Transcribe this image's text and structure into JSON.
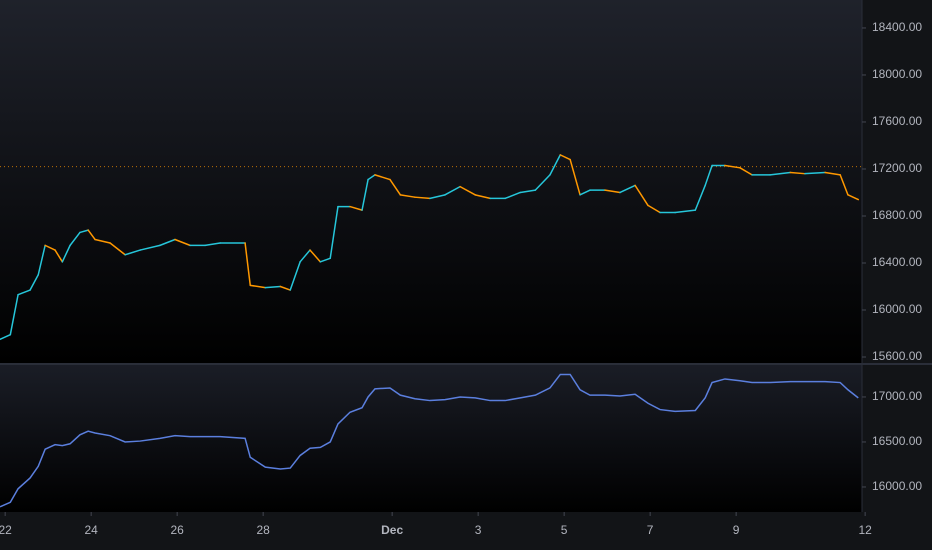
{
  "chart_data": [
    {
      "type": "line",
      "x": [
        -0.12,
        0.12,
        0.3,
        0.58,
        0.77,
        0.93,
        1.16,
        1.33,
        1.51,
        1.74,
        1.93,
        2.09,
        2.44,
        2.79,
        3.14,
        3.6,
        3.95,
        4.3,
        4.65,
        5.0,
        5.58,
        5.7,
        6.05,
        6.4,
        6.63,
        6.86,
        7.09,
        7.33,
        7.56,
        7.74,
        8.02,
        8.3,
        8.44,
        8.6,
        8.95,
        9.19,
        9.53,
        9.88,
        10.23,
        10.58,
        10.93,
        11.28,
        11.63,
        11.98,
        12.33,
        12.67,
        12.91,
        13.14,
        13.37,
        13.6,
        13.95,
        14.3,
        14.65,
        14.95,
        15.23,
        15.58,
        16.05,
        16.28,
        16.44,
        16.74,
        17.09,
        17.37,
        17.79,
        18.26,
        18.6,
        19.07,
        19.42,
        19.6,
        19.84
      ],
      "values": [
        15750,
        15790,
        16130,
        16170,
        16300,
        16550,
        16510,
        16410,
        16550,
        16660,
        16680,
        16600,
        16570,
        16470,
        16510,
        16550,
        16600,
        16550,
        16550,
        16570,
        16570,
        16210,
        16190,
        16200,
        16170,
        16410,
        16510,
        16410,
        16440,
        16880,
        16880,
        16850,
        17110,
        17150,
        17110,
        16980,
        16960,
        16950,
        16980,
        17050,
        16980,
        16950,
        16950,
        17000,
        17020,
        17150,
        17320,
        17280,
        16980,
        17020,
        17020,
        17000,
        17060,
        16890,
        16830,
        16830,
        16850,
        17060,
        17230,
        17230,
        17210,
        17150,
        17150,
        17170,
        17160,
        17170,
        17150,
        16980,
        16940
      ],
      "up_color": "#26c6da",
      "down_color": "#ff9800",
      "price_line": 17220,
      "xlim": [
        -0.12,
        20.02
      ],
      "ylim": [
        15549,
        18638
      ],
      "yticks": [
        {
          "value": 18400,
          "label": "18400.00"
        },
        {
          "value": 18000,
          "label": "18000.00"
        },
        {
          "value": 17600,
          "label": "17600.00"
        },
        {
          "value": 17200,
          "label": "17200.00"
        },
        {
          "value": 16800,
          "label": "16800.00"
        },
        {
          "value": 16400,
          "label": "16400.00"
        },
        {
          "value": 16000,
          "label": "16000.00"
        },
        {
          "value": 15600,
          "label": "15600.00"
        }
      ]
    },
    {
      "type": "line",
      "x": [
        -0.12,
        0.12,
        0.3,
        0.58,
        0.77,
        0.93,
        1.16,
        1.33,
        1.51,
        1.74,
        1.93,
        2.09,
        2.44,
        2.79,
        3.14,
        3.6,
        3.95,
        4.3,
        4.65,
        5.0,
        5.58,
        5.7,
        6.05,
        6.4,
        6.63,
        6.86,
        7.09,
        7.33,
        7.56,
        7.74,
        8.02,
        8.3,
        8.44,
        8.6,
        8.95,
        9.19,
        9.53,
        9.88,
        10.23,
        10.58,
        10.93,
        11.28,
        11.63,
        11.98,
        12.33,
        12.67,
        12.91,
        13.14,
        13.37,
        13.6,
        13.95,
        14.3,
        14.65,
        14.95,
        15.23,
        15.58,
        16.05,
        16.28,
        16.44,
        16.74,
        17.09,
        17.37,
        17.79,
        18.26,
        18.6,
        19.07,
        19.42,
        19.6,
        19.84
      ],
      "values": [
        15780,
        15830,
        15980,
        16100,
        16230,
        16420,
        16470,
        16460,
        16480,
        16580,
        16620,
        16600,
        16570,
        16500,
        16510,
        16540,
        16570,
        16560,
        16560,
        16560,
        16540,
        16330,
        16220,
        16200,
        16210,
        16350,
        16430,
        16440,
        16500,
        16700,
        16830,
        16880,
        17000,
        17090,
        17100,
        17020,
        16980,
        16960,
        16970,
        17000,
        16990,
        16960,
        16960,
        16990,
        17020,
        17100,
        17250,
        17250,
        17080,
        17020,
        17020,
        17010,
        17030,
        16930,
        16860,
        16840,
        16850,
        16990,
        17160,
        17200,
        17180,
        17160,
        17160,
        17170,
        17170,
        17170,
        17160,
        17080,
        16990
      ],
      "color": "#5b7fde",
      "xlim": [
        -0.12,
        20.02
      ],
      "ylim": [
        15722,
        17355
      ],
      "yticks": [
        {
          "value": 17000,
          "label": "17000.00"
        },
        {
          "value": 16500,
          "label": "16500.00"
        },
        {
          "value": 16000,
          "label": "16000.00"
        }
      ],
      "xticks": [
        {
          "value": 0,
          "label": "22"
        },
        {
          "value": 2,
          "label": "24"
        },
        {
          "value": 4,
          "label": "26"
        },
        {
          "value": 6,
          "label": "28"
        },
        {
          "value": 9,
          "label": "Dec"
        },
        {
          "value": 11,
          "label": "3"
        },
        {
          "value": 13,
          "label": "5"
        },
        {
          "value": 15,
          "label": "7"
        },
        {
          "value": 17,
          "label": "9"
        },
        {
          "value": 20,
          "label": "12"
        }
      ]
    }
  ]
}
